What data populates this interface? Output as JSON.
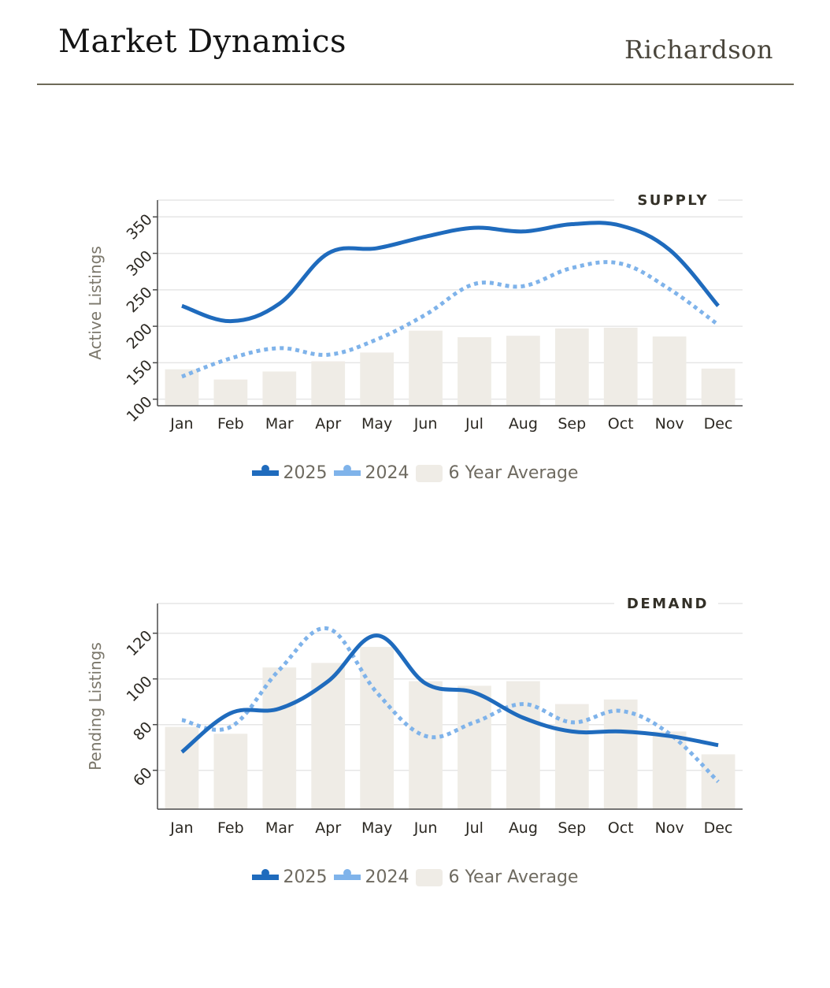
{
  "header": {
    "title": "Market Dynamics",
    "city": "Richardson"
  },
  "colors": {
    "series_2025": "#1f6bbd",
    "series_2024": "#7fb3ea",
    "average_bar": "#efece6",
    "grid": "#e6e6e6",
    "axis": "#4a4a4a"
  },
  "legend": {
    "items": [
      {
        "label": "2025",
        "type": "line"
      },
      {
        "label": "2024",
        "type": "dotted-line"
      },
      {
        "label": "6 Year Average",
        "type": "bar"
      }
    ]
  },
  "chart_data": [
    {
      "type": "line",
      "section_label": "SUPPLY",
      "title": "SUPPLY",
      "xlabel": "",
      "ylabel": "Active Listings",
      "ylim": [
        91,
        373
      ],
      "yticks": [
        100,
        150,
        200,
        250,
        300,
        350
      ],
      "grid": true,
      "legend_position": "bottom-center",
      "categories": [
        "Jan",
        "Feb",
        "Mar",
        "Apr",
        "May",
        "Jun",
        "Jul",
        "Aug",
        "Sep",
        "Oct",
        "Nov",
        "Dec"
      ],
      "series": [
        {
          "name": "2025",
          "style": "solid-line",
          "values": [
            228,
            207,
            231,
            300,
            307,
            323,
            335,
            330,
            340,
            338,
            305,
            228
          ]
        },
        {
          "name": "2024",
          "style": "dotted-line",
          "values": [
            131,
            156,
            170,
            161,
            182,
            216,
            258,
            255,
            280,
            286,
            251,
            202
          ]
        },
        {
          "name": "6 Year Average",
          "style": "bar",
          "values": [
            141,
            127,
            138,
            152,
            164,
            194,
            185,
            187,
            197,
            198,
            186,
            142
          ]
        }
      ]
    },
    {
      "type": "line",
      "section_label": "DEMAND",
      "title": "DEMAND",
      "xlabel": "",
      "ylabel": "Pending Listings",
      "ylim": [
        43,
        133
      ],
      "yticks": [
        60,
        80,
        100,
        120
      ],
      "grid": true,
      "legend_position": "bottom-center",
      "categories": [
        "Jan",
        "Feb",
        "Mar",
        "Apr",
        "May",
        "Jun",
        "Jul",
        "Aug",
        "Sep",
        "Oct",
        "Nov",
        "Dec"
      ],
      "series": [
        {
          "name": "2025",
          "style": "solid-line",
          "values": [
            68,
            85,
            87,
            99,
            119,
            98,
            94,
            83,
            77,
            77,
            75,
            71
          ]
        },
        {
          "name": "2024",
          "style": "dotted-line",
          "values": [
            82,
            79,
            104,
            122,
            94,
            75,
            81,
            89,
            81,
            86,
            76,
            55
          ]
        },
        {
          "name": "6 Year Average",
          "style": "bar",
          "values": [
            79,
            76,
            105,
            107,
            114,
            99,
            97,
            99,
            89,
            91,
            77,
            67
          ]
        }
      ]
    }
  ]
}
